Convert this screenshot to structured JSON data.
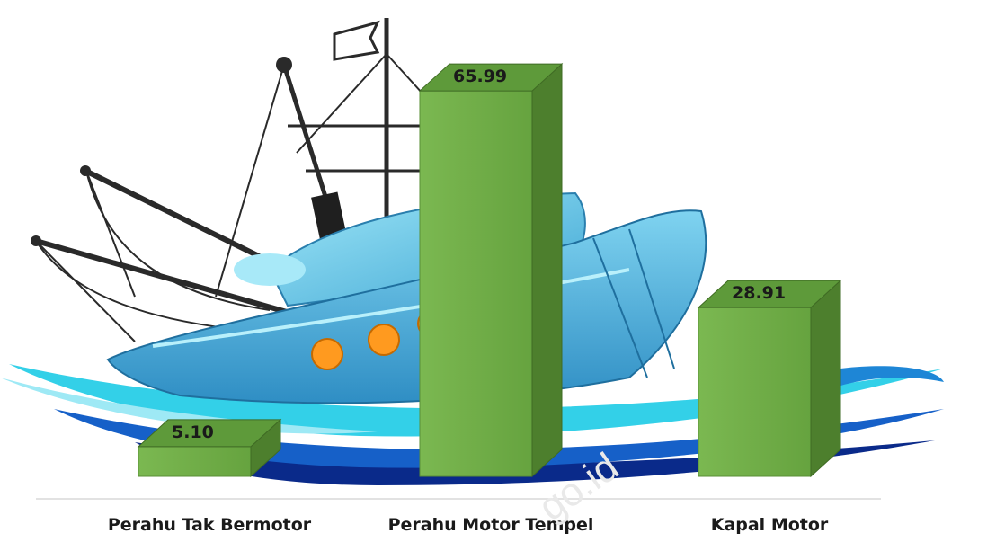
{
  "chart_data": {
    "type": "bar",
    "style": "3d-column",
    "categories": [
      "Perahu Tak Bermotor",
      "Perahu Motor Tempel",
      "Kapal Motor"
    ],
    "values": [
      5.1,
      65.99,
      28.91
    ],
    "value_labels": [
      "5.10",
      "65.99",
      "28.91"
    ],
    "bar_color": "#70ad47",
    "ylim": [
      0,
      70
    ],
    "grid": false,
    "legend": "none",
    "background_illustration": "fishing-boat-on-waves"
  },
  "watermark": "go.id",
  "colors": {
    "bar_front": "#70ad47",
    "bar_side": "#4d7f2d",
    "bar_top": "#8cc462",
    "wave_cyan": "#33d0e8",
    "wave_blue": "#1660c8",
    "wave_navy": "#0a2a8a",
    "hull": "#4aa9d6",
    "cabin": "#5fc6e6",
    "porthole": "#ff9a1f",
    "rigging": "#2a2a2a"
  }
}
